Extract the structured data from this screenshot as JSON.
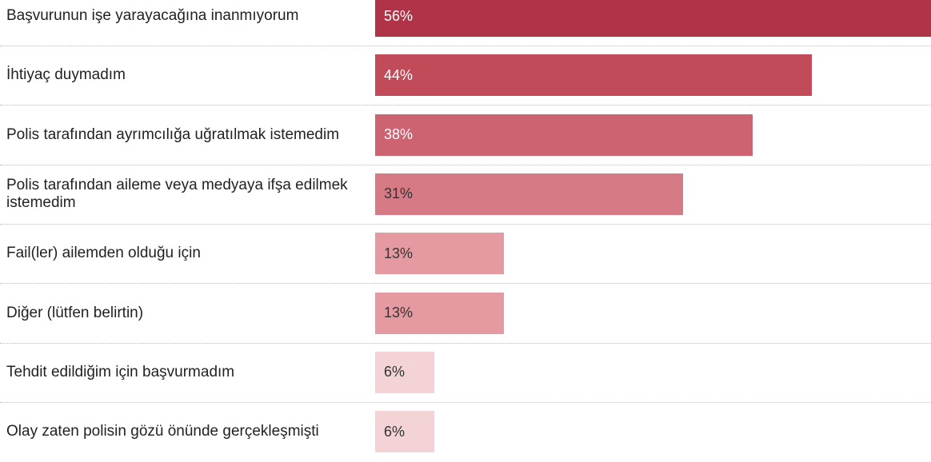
{
  "chart_data": {
    "type": "bar",
    "orientation": "horizontal",
    "categories": [
      "Başvurunun işe yarayacağına inanmıyorum",
      "İhtiyaç duymadım",
      "Polis tarafından ayrımcılığa uğratılmak istemedim",
      "Polis tarafından aileme veya medyaya ifşa edilmek istemedim",
      "Fail(ler) ailemden olduğu için",
      "Diğer (lütfen belirtin)",
      "Tehdit edildiğim için başvurmadım",
      "Olay zaten polisin gözü önünde gerçekleşmişti"
    ],
    "values": [
      56,
      44,
      38,
      31,
      13,
      13,
      6,
      6
    ],
    "value_labels": [
      "56%",
      "44%",
      "38%",
      "31%",
      "13%",
      "13%",
      "6%",
      "6%"
    ],
    "colors": [
      "#b03447",
      "#c24b5a",
      "#cd6371",
      "#d67a85",
      "#e59aa1",
      "#e59aa1",
      "#f3d3d6",
      "#f3d3d6"
    ]
  }
}
